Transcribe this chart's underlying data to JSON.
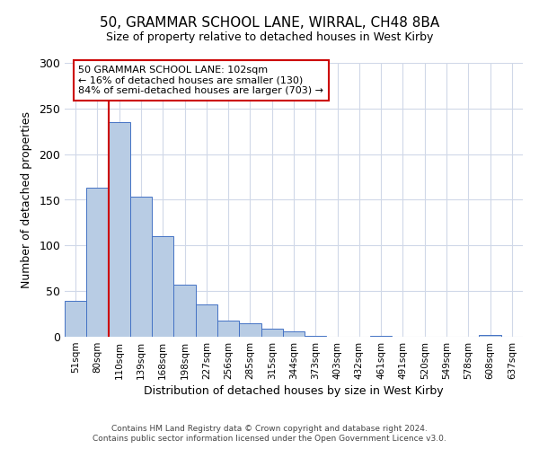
{
  "title": "50, GRAMMAR SCHOOL LANE, WIRRAL, CH48 8BA",
  "subtitle": "Size of property relative to detached houses in West Kirby",
  "xlabel": "Distribution of detached houses by size in West Kirby",
  "ylabel": "Number of detached properties",
  "bar_labels": [
    "51sqm",
    "80sqm",
    "110sqm",
    "139sqm",
    "168sqm",
    "198sqm",
    "227sqm",
    "256sqm",
    "285sqm",
    "315sqm",
    "344sqm",
    "373sqm",
    "403sqm",
    "432sqm",
    "461sqm",
    "491sqm",
    "520sqm",
    "549sqm",
    "578sqm",
    "608sqm",
    "637sqm"
  ],
  "bar_values": [
    39,
    163,
    235,
    153,
    110,
    57,
    35,
    18,
    15,
    9,
    6,
    1,
    0,
    0,
    1,
    0,
    0,
    0,
    0,
    2,
    0
  ],
  "bar_color": "#b8cce4",
  "bar_edge_color": "#4472c4",
  "property_line_color": "#cc0000",
  "property_line_index": 1.5,
  "ylim": [
    0,
    300
  ],
  "yticks": [
    0,
    50,
    100,
    150,
    200,
    250,
    300
  ],
  "annotation_title": "50 GRAMMAR SCHOOL LANE: 102sqm",
  "annotation_line1": "← 16% of detached houses are smaller (130)",
  "annotation_line2": "84% of semi-detached houses are larger (703) →",
  "annotation_box_color": "#ffffff",
  "annotation_box_edge": "#cc0000",
  "footer1": "Contains HM Land Registry data © Crown copyright and database right 2024.",
  "footer2": "Contains public sector information licensed under the Open Government Licence v3.0.",
  "background_color": "#ffffff",
  "grid_color": "#d0d8e8"
}
